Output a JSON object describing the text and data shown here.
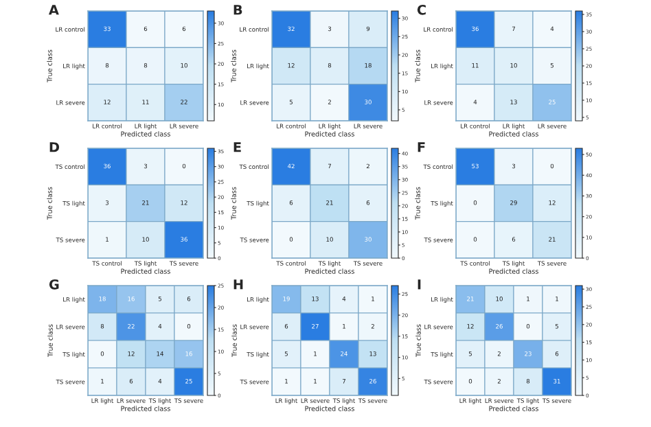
{
  "chart_data": [
    {
      "type": "heatmap",
      "title": "A",
      "xlabel": "Predicted class",
      "ylabel": "True class",
      "categories": [
        "LR control",
        "LR light",
        "LR severe"
      ],
      "y_categories": [
        "LR control",
        "LR light",
        "LR severe"
      ],
      "cells": [
        [
          33,
          6,
          6
        ],
        [
          8,
          8,
          10
        ],
        [
          12,
          11,
          22
        ]
      ],
      "clim": [
        6,
        33
      ],
      "cticks": [
        10,
        15,
        20,
        25,
        30
      ],
      "data_labels": true
    },
    {
      "type": "heatmap",
      "title": "B",
      "xlabel": "Predicted class",
      "ylabel": "True class",
      "categories": [
        "LR control",
        "LR light",
        "LR severe"
      ],
      "y_categories": [
        "LR control",
        "LR light",
        "LR severe"
      ],
      "cells": [
        [
          32,
          3,
          9
        ],
        [
          12,
          8,
          18
        ],
        [
          5,
          2,
          30
        ]
      ],
      "clim": [
        2,
        32
      ],
      "cticks": [
        5,
        10,
        15,
        20,
        25,
        30
      ],
      "data_labels": true
    },
    {
      "type": "heatmap",
      "title": "C",
      "xlabel": "Predicted class",
      "ylabel": "True class",
      "categories": [
        "LR control",
        "LR light",
        "LR severe"
      ],
      "y_categories": [
        "LR control",
        "LR light",
        "LR severe"
      ],
      "cells": [
        [
          36,
          7,
          4
        ],
        [
          11,
          10,
          5
        ],
        [
          4,
          13,
          25
        ]
      ],
      "clim": [
        4,
        36
      ],
      "cticks": [
        5,
        10,
        15,
        20,
        25,
        30,
        35
      ],
      "data_labels": true
    },
    {
      "type": "heatmap",
      "title": "D",
      "xlabel": "Predicted class",
      "ylabel": "True class",
      "categories": [
        "TS control",
        "TS light",
        "TS severe"
      ],
      "y_categories": [
        "TS control",
        "TS light",
        "TS severe"
      ],
      "cells": [
        [
          36,
          3,
          0
        ],
        [
          3,
          21,
          12
        ],
        [
          1,
          10,
          36
        ]
      ],
      "clim": [
        0,
        36
      ],
      "cticks": [
        0,
        5,
        10,
        15,
        20,
        25,
        30,
        35
      ],
      "data_labels": true
    },
    {
      "type": "heatmap",
      "title": "E",
      "xlabel": "Predicted class",
      "ylabel": "True class",
      "categories": [
        "TS control",
        "TS light",
        "TS severe"
      ],
      "y_categories": [
        "TS control",
        "TS light",
        "TS severe"
      ],
      "cells": [
        [
          42,
          7,
          2
        ],
        [
          6,
          21,
          6
        ],
        [
          0,
          10,
          30
        ]
      ],
      "clim": [
        0,
        42
      ],
      "cticks": [
        0,
        5,
        10,
        15,
        20,
        25,
        30,
        35,
        40
      ],
      "data_labels": true
    },
    {
      "type": "heatmap",
      "title": "F",
      "xlabel": "Predicted class",
      "ylabel": "True class",
      "categories": [
        "TS control",
        "TS light",
        "TS severe"
      ],
      "y_categories": [
        "TS control",
        "TS light",
        "TS severe"
      ],
      "cells": [
        [
          53,
          3,
          0
        ],
        [
          0,
          29,
          12
        ],
        [
          0,
          6,
          21
        ]
      ],
      "clim": [
        0,
        53
      ],
      "cticks": [
        0,
        10,
        20,
        30,
        40,
        50
      ],
      "data_labels": true
    },
    {
      "type": "heatmap",
      "title": "G",
      "xlabel": "Predicted class",
      "ylabel": "True class",
      "categories": [
        "LR light",
        "LR severe",
        "TS light",
        "TS severe"
      ],
      "y_categories": [
        "LR light",
        "LR severe",
        "TS light",
        "TS severe"
      ],
      "cells": [
        [
          18,
          16,
          5,
          6
        ],
        [
          8,
          22,
          4,
          0
        ],
        [
          0,
          12,
          14,
          16
        ],
        [
          1,
          6,
          4,
          25
        ]
      ],
      "clim": [
        0,
        25
      ],
      "cticks": [
        0,
        5,
        10,
        15,
        20,
        25
      ],
      "data_labels": true
    },
    {
      "type": "heatmap",
      "title": "H",
      "xlabel": "Predicted class",
      "ylabel": "True class",
      "categories": [
        "LR light",
        "LR severe",
        "TS light",
        "TS severe"
      ],
      "y_categories": [
        "LR light",
        "LR severe",
        "TS light",
        "TS severe"
      ],
      "cells": [
        [
          19,
          13,
          4,
          1
        ],
        [
          6,
          27,
          1,
          2
        ],
        [
          5,
          1,
          24,
          13
        ],
        [
          1,
          1,
          7,
          26
        ]
      ],
      "clim": [
        1,
        27
      ],
      "cticks": [
        5,
        10,
        15,
        20,
        25
      ],
      "data_labels": true
    },
    {
      "type": "heatmap",
      "title": "I",
      "xlabel": "Predicted class",
      "ylabel": "True class",
      "categories": [
        "LR light",
        "LR severe",
        "TS light",
        "TS severe"
      ],
      "y_categories": [
        "LR light",
        "LR severe",
        "TS light",
        "TS severe"
      ],
      "cells": [
        [
          21,
          10,
          1,
          1
        ],
        [
          12,
          26,
          0,
          5
        ],
        [
          5,
          2,
          23,
          6
        ],
        [
          0,
          2,
          8,
          31
        ]
      ],
      "clim": [
        0,
        31
      ],
      "cticks": [
        0,
        5,
        10,
        15,
        20,
        25,
        30
      ],
      "data_labels": true
    }
  ]
}
